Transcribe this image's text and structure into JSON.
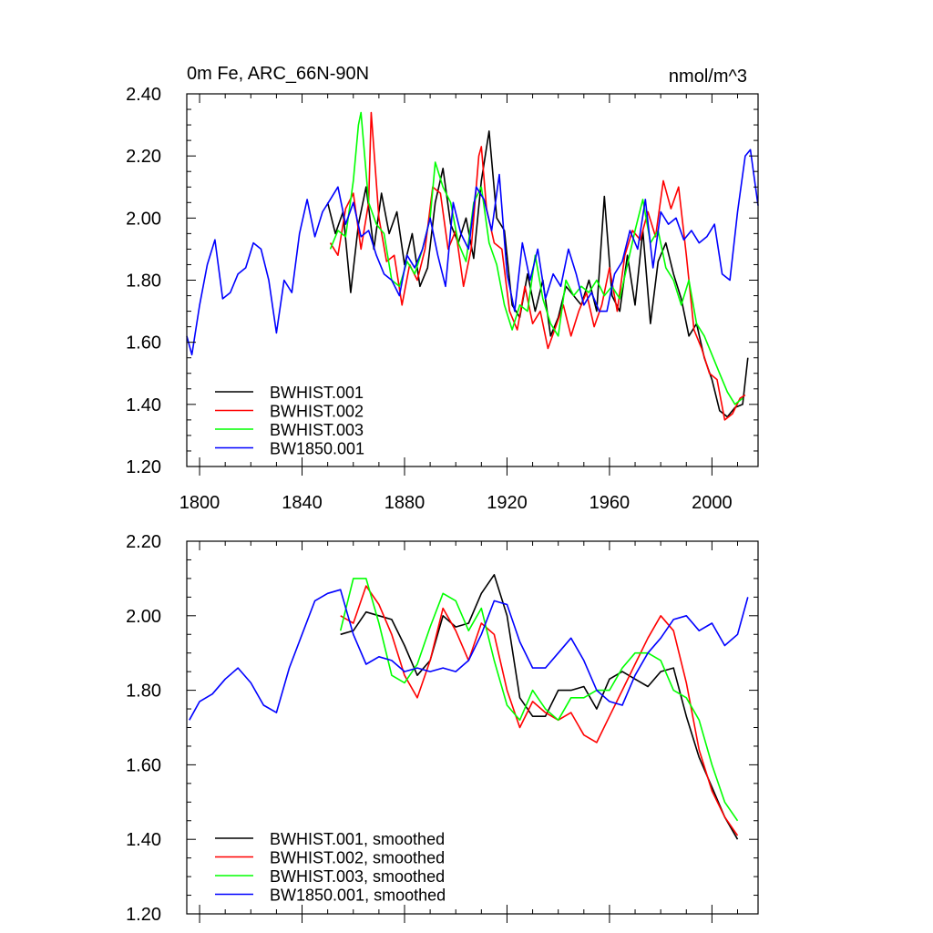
{
  "chart_data": [
    {
      "type": "line",
      "title_left": "0m Fe, ARC_66N-90N",
      "title_right": "nmol/m^3",
      "xlim": [
        1795,
        2018
      ],
      "ylim": [
        1.2,
        2.4
      ],
      "yticks": [
        1.2,
        1.4,
        1.6,
        1.8,
        2.0,
        2.2,
        2.4
      ],
      "ytick_labels": [
        "1.20",
        "1.40",
        "1.60",
        "1.80",
        "2.00",
        "2.20",
        "2.40"
      ],
      "xticks": [
        1800,
        1840,
        1880,
        1920,
        1960,
        2000
      ],
      "xtick_labels": [
        "1800",
        "1840",
        "1880",
        "1920",
        "1960",
        "2000"
      ],
      "legend_position": "bottom-left",
      "series": [
        {
          "name": "BWHIST.001",
          "color": "#000000",
          "x": [
            1850,
            1853,
            1856,
            1859,
            1862,
            1865,
            1868,
            1871,
            1874,
            1877,
            1880,
            1883,
            1886,
            1889,
            1892,
            1895,
            1898,
            1901,
            1904,
            1907,
            1910,
            1913,
            1916,
            1919,
            1922,
            1925,
            1928,
            1931,
            1934,
            1937,
            1940,
            1943,
            1946,
            1949,
            1952,
            1955,
            1958,
            1961,
            1964,
            1967,
            1970,
            1973,
            1976,
            1979,
            1982,
            1985,
            1988,
            1991,
            1994,
            1997,
            2000,
            2003,
            2006,
            2009,
            2012,
            2014
          ],
          "y": [
            2.05,
            1.95,
            2.02,
            1.76,
            1.98,
            2.1,
            1.9,
            2.08,
            1.95,
            2.02,
            1.85,
            1.95,
            1.78,
            1.84,
            2.05,
            2.16,
            1.98,
            1.92,
            2.0,
            1.87,
            2.12,
            2.28,
            2.0,
            1.96,
            1.72,
            1.68,
            1.82,
            1.7,
            1.8,
            1.62,
            1.68,
            1.78,
            1.75,
            1.72,
            1.8,
            1.7,
            2.07,
            1.75,
            1.7,
            1.88,
            1.72,
            1.96,
            1.66,
            1.86,
            1.92,
            1.82,
            1.74,
            1.62,
            1.66,
            1.55,
            1.48,
            1.38,
            1.36,
            1.39,
            1.4,
            1.55
          ]
        },
        {
          "name": "BWHIST.002",
          "color": "#ff0000",
          "x": [
            1851,
            1854,
            1857,
            1860,
            1863,
            1866,
            1867,
            1870,
            1873,
            1876,
            1879,
            1882,
            1885,
            1888,
            1891,
            1894,
            1897,
            1900,
            1903,
            1906,
            1909,
            1910,
            1912,
            1915,
            1918,
            1921,
            1924,
            1927,
            1930,
            1933,
            1936,
            1939,
            1942,
            1945,
            1948,
            1951,
            1954,
            1957,
            1960,
            1963,
            1966,
            1969,
            1972,
            1975,
            1978,
            1981,
            1984,
            1987,
            1990,
            1993,
            1996,
            1999,
            2002,
            2005,
            2008,
            2011,
            2013
          ],
          "y": [
            1.92,
            1.88,
            2.03,
            2.08,
            1.9,
            2.05,
            2.34,
            2.0,
            1.86,
            1.88,
            1.72,
            1.85,
            1.8,
            1.9,
            2.1,
            2.08,
            1.9,
            1.96,
            1.78,
            1.9,
            2.2,
            2.23,
            2.03,
            1.92,
            1.9,
            1.7,
            1.64,
            1.78,
            1.66,
            1.7,
            1.58,
            1.65,
            1.72,
            1.62,
            1.7,
            1.76,
            1.65,
            1.72,
            1.84,
            1.7,
            1.88,
            1.96,
            1.93,
            2.02,
            1.94,
            2.12,
            2.03,
            2.1,
            1.88,
            1.64,
            1.58,
            1.5,
            1.48,
            1.35,
            1.37,
            1.42,
            1.43
          ]
        },
        {
          "name": "BWHIST.003",
          "color": "#00ff00",
          "x": [
            1851,
            1854,
            1857,
            1860,
            1862,
            1863,
            1866,
            1869,
            1872,
            1875,
            1878,
            1881,
            1884,
            1887,
            1890,
            1892,
            1895,
            1898,
            1901,
            1904,
            1907,
            1910,
            1913,
            1916,
            1919,
            1922,
            1925,
            1928,
            1931,
            1934,
            1937,
            1940,
            1943,
            1946,
            1949,
            1952,
            1955,
            1958,
            1961,
            1964,
            1967,
            1970,
            1973,
            1976,
            1979,
            1982,
            1985,
            1988,
            1991,
            1994,
            1997,
            2000,
            2003,
            2006,
            2009,
            2012
          ],
          "y": [
            1.9,
            1.96,
            1.94,
            2.12,
            2.3,
            2.34,
            2.05,
            1.98,
            1.95,
            1.8,
            1.78,
            1.86,
            1.82,
            1.9,
            2.0,
            2.18,
            2.1,
            2.05,
            1.92,
            1.86,
            2.05,
            2.1,
            1.92,
            1.85,
            1.72,
            1.64,
            1.72,
            1.7,
            1.88,
            1.74,
            1.66,
            1.62,
            1.8,
            1.75,
            1.78,
            1.76,
            1.8,
            1.75,
            1.78,
            1.74,
            1.85,
            1.96,
            2.06,
            1.92,
            1.96,
            1.84,
            1.8,
            1.72,
            1.8,
            1.66,
            1.62,
            1.56,
            1.5,
            1.44,
            1.4,
            1.42
          ]
        },
        {
          "name": "BW1850.001",
          "color": "#0000ff",
          "x": [
            1795,
            1797,
            1800,
            1803,
            1806,
            1809,
            1812,
            1815,
            1818,
            1821,
            1824,
            1827,
            1830,
            1833,
            1836,
            1839,
            1842,
            1845,
            1848,
            1851,
            1854,
            1857,
            1860,
            1863,
            1866,
            1869,
            1872,
            1875,
            1878,
            1881,
            1884,
            1887,
            1890,
            1893,
            1896,
            1899,
            1902,
            1905,
            1908,
            1911,
            1914,
            1917,
            1920,
            1923,
            1926,
            1929,
            1932,
            1935,
            1938,
            1941,
            1944,
            1947,
            1950,
            1953,
            1956,
            1959,
            1962,
            1965,
            1968,
            1971,
            1974,
            1977,
            1980,
            1983,
            1986,
            1989,
            1992,
            1995,
            1998,
            2001,
            2004,
            2007,
            2010,
            2013,
            2015,
            2018
          ],
          "y": [
            1.62,
            1.56,
            1.72,
            1.85,
            1.93,
            1.74,
            1.76,
            1.82,
            1.84,
            1.92,
            1.9,
            1.8,
            1.63,
            1.8,
            1.76,
            1.95,
            2.06,
            1.94,
            2.02,
            2.06,
            2.1,
            1.98,
            2.05,
            1.94,
            1.96,
            1.88,
            1.82,
            1.8,
            1.75,
            1.88,
            1.84,
            1.9,
            2.0,
            1.88,
            1.78,
            2.05,
            1.95,
            1.9,
            2.1,
            2.06,
            1.96,
            2.14,
            1.82,
            1.7,
            1.92,
            1.8,
            1.9,
            1.74,
            1.82,
            1.78,
            1.9,
            1.82,
            1.72,
            1.76,
            1.7,
            1.7,
            1.82,
            1.86,
            1.96,
            1.9,
            2.06,
            1.84,
            2.02,
            1.98,
            2.0,
            1.93,
            1.96,
            1.92,
            1.94,
            1.98,
            1.82,
            1.8,
            2.02,
            2.2,
            2.22,
            2.04
          ]
        }
      ]
    },
    {
      "type": "line",
      "xlim": [
        1795,
        2018
      ],
      "ylim": [
        1.2,
        2.2
      ],
      "yticks": [
        1.2,
        1.4,
        1.6,
        1.8,
        2.0,
        2.2
      ],
      "ytick_labels": [
        "1.20",
        "1.40",
        "1.60",
        "1.80",
        "2.00",
        "2.20"
      ],
      "xticks": [
        1800,
        1840,
        1880,
        1920,
        1960,
        2000
      ],
      "legend_position": "bottom-left",
      "series": [
        {
          "name": "BWHIST.001, smoothed",
          "color": "#000000",
          "x": [
            1855,
            1860,
            1865,
            1870,
            1875,
            1880,
            1885,
            1890,
            1895,
            1900,
            1905,
            1910,
            1915,
            1920,
            1925,
            1930,
            1935,
            1940,
            1945,
            1950,
            1955,
            1960,
            1965,
            1970,
            1975,
            1980,
            1985,
            1990,
            1995,
            2000,
            2005,
            2010
          ],
          "y": [
            1.95,
            1.96,
            2.01,
            2.0,
            1.99,
            1.92,
            1.84,
            1.88,
            2.0,
            1.97,
            1.98,
            2.06,
            2.11,
            2.0,
            1.78,
            1.73,
            1.73,
            1.8,
            1.8,
            1.81,
            1.75,
            1.83,
            1.85,
            1.83,
            1.81,
            1.85,
            1.86,
            1.73,
            1.62,
            1.54,
            1.46,
            1.4
          ]
        },
        {
          "name": "BWHIST.002, smoothed",
          "color": "#ff0000",
          "x": [
            1855,
            1860,
            1865,
            1870,
            1875,
            1880,
            1885,
            1890,
            1895,
            1900,
            1905,
            1910,
            1915,
            1920,
            1925,
            1930,
            1935,
            1940,
            1945,
            1950,
            1955,
            1960,
            1965,
            1970,
            1975,
            1980,
            1985,
            1990,
            1995,
            2000,
            2005,
            2010
          ],
          "y": [
            2.0,
            1.98,
            2.08,
            2.03,
            1.95,
            1.84,
            1.78,
            1.88,
            2.02,
            1.96,
            1.88,
            1.98,
            1.95,
            1.8,
            1.7,
            1.77,
            1.74,
            1.72,
            1.74,
            1.68,
            1.66,
            1.73,
            1.8,
            1.87,
            1.94,
            2.0,
            1.96,
            1.82,
            1.64,
            1.53,
            1.46,
            1.41
          ]
        },
        {
          "name": "BWHIST.003, smoothed",
          "color": "#00ff00",
          "x": [
            1855,
            1860,
            1865,
            1870,
            1875,
            1880,
            1885,
            1890,
            1895,
            1900,
            1905,
            1910,
            1915,
            1920,
            1925,
            1930,
            1935,
            1940,
            1945,
            1950,
            1955,
            1960,
            1965,
            1970,
            1975,
            1980,
            1985,
            1990,
            1995,
            2000,
            2005,
            2010
          ],
          "y": [
            1.96,
            2.1,
            2.1,
            1.98,
            1.84,
            1.82,
            1.87,
            1.97,
            2.06,
            2.04,
            1.96,
            2.02,
            1.88,
            1.76,
            1.72,
            1.8,
            1.75,
            1.72,
            1.78,
            1.78,
            1.8,
            1.8,
            1.86,
            1.9,
            1.9,
            1.88,
            1.8,
            1.78,
            1.72,
            1.6,
            1.5,
            1.45
          ]
        },
        {
          "name": "BW1850.001, smoothed",
          "color": "#0000ff",
          "x": [
            1796,
            1800,
            1805,
            1810,
            1815,
            1820,
            1825,
            1830,
            1835,
            1840,
            1845,
            1850,
            1855,
            1860,
            1865,
            1870,
            1875,
            1880,
            1885,
            1890,
            1895,
            1900,
            1905,
            1910,
            1915,
            1920,
            1925,
            1930,
            1935,
            1940,
            1945,
            1950,
            1955,
            1960,
            1965,
            1970,
            1975,
            1980,
            1985,
            1990,
            1995,
            2000,
            2005,
            2010,
            2014
          ],
          "y": [
            1.72,
            1.77,
            1.79,
            1.83,
            1.86,
            1.82,
            1.76,
            1.74,
            1.86,
            1.95,
            2.04,
            2.06,
            2.07,
            1.95,
            1.87,
            1.89,
            1.88,
            1.85,
            1.86,
            1.85,
            1.86,
            1.85,
            1.88,
            1.95,
            2.04,
            2.03,
            1.93,
            1.86,
            1.86,
            1.9,
            1.94,
            1.88,
            1.8,
            1.77,
            1.76,
            1.84,
            1.9,
            1.94,
            1.99,
            2.0,
            1.96,
            1.98,
            1.92,
            1.95,
            2.05
          ]
        }
      ]
    }
  ]
}
